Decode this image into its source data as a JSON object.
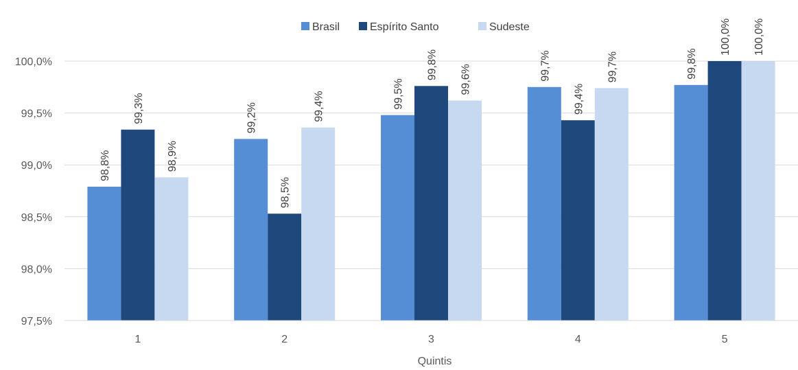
{
  "chart_data": {
    "type": "bar",
    "title": "",
    "xlabel": "Quintis",
    "ylabel": "",
    "categories": [
      "1",
      "2",
      "3",
      "4",
      "5"
    ],
    "ylim": [
      97.5,
      100.0
    ],
    "yticks": [
      97.5,
      98.0,
      98.5,
      99.0,
      99.5,
      100.0
    ],
    "ytick_labels": [
      "97,5%",
      "98,0%",
      "98,5%",
      "99,0%",
      "99,5%",
      "100,0%"
    ],
    "grid": true,
    "legend_position": "top",
    "series": [
      {
        "name": "Brasil",
        "color": "#558ED5",
        "values": [
          98.79,
          99.25,
          99.48,
          99.75,
          99.77
        ],
        "labels": [
          "98,8%",
          "99,2%",
          "99,5%",
          "99,7%",
          "99,8%"
        ]
      },
      {
        "name": "Espírito Santo",
        "color": "#1F497D",
        "values": [
          99.34,
          98.53,
          99.76,
          99.43,
          100.0
        ],
        "labels": [
          "99,3%",
          "98,5%",
          "99,8%",
          "99,4%",
          "100,0%"
        ]
      },
      {
        "name": "Sudeste",
        "color": "#C6D9F1",
        "values": [
          98.88,
          99.36,
          99.62,
          99.74,
          100.0
        ],
        "labels": [
          "98,9%",
          "99,4%",
          "99,6%",
          "99,7%",
          "100,0%"
        ]
      }
    ]
  }
}
